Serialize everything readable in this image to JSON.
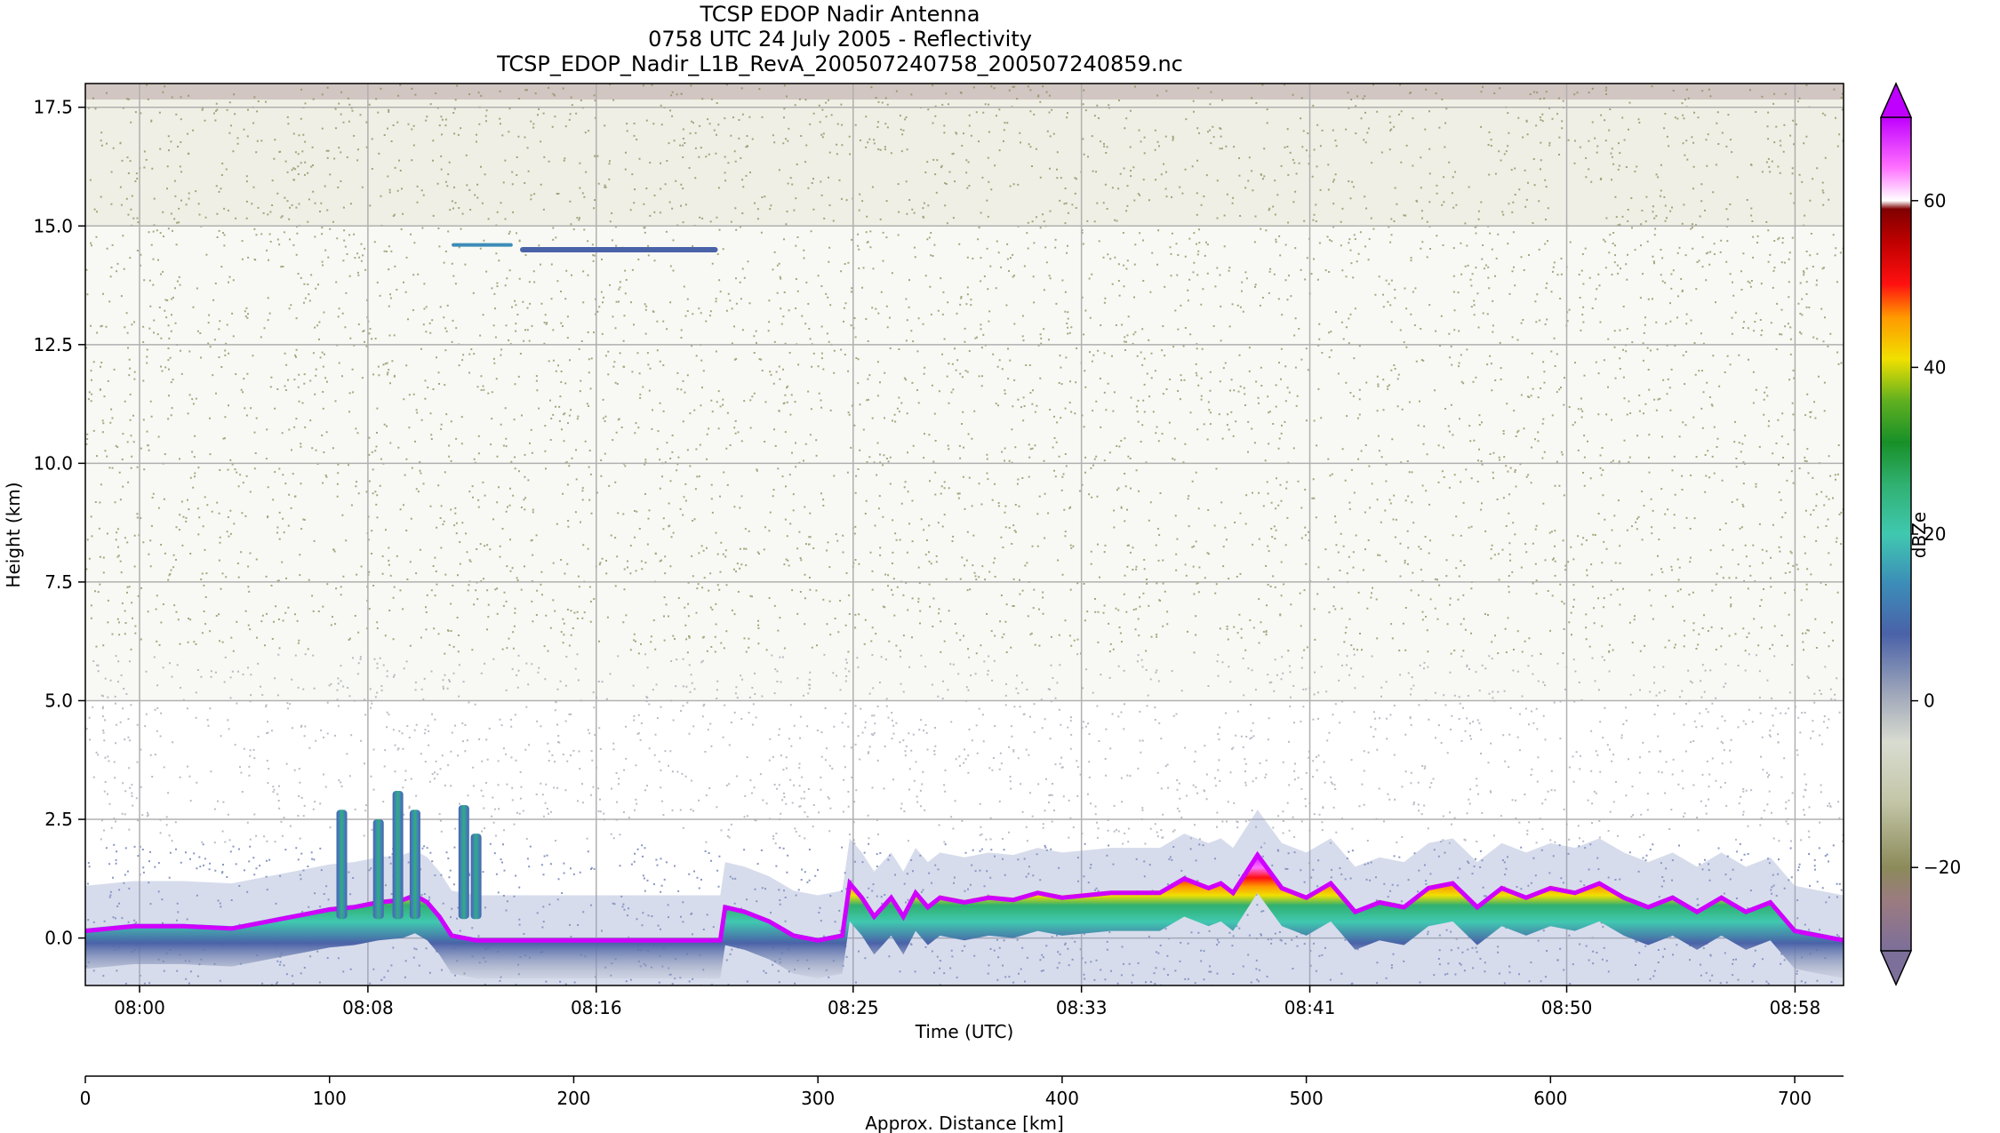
{
  "chart_data": {
    "type": "heatmap",
    "title_lines": [
      "TCSP EDOP Nadir Antenna",
      "0758 UTC 24 July 2005 - Reflectivity",
      "TCSP_EDOP_Nadir_L1B_RevA_200507240758_200507240859.nc"
    ],
    "xlabel": "Time (UTC)",
    "ylabel": "Height (km)",
    "x2label": "Approx. Distance [km]",
    "ylim": [
      -1.0,
      18.0
    ],
    "yticks": [
      0.0,
      2.5,
      5.0,
      7.5,
      10.0,
      12.5,
      15.0,
      17.5
    ],
    "ytick_labels": [
      "0.0",
      "2.5",
      "5.0",
      "7.5",
      "10.0",
      "12.5",
      "15.0",
      "17.5"
    ],
    "time_range_min": [
      478.1,
      539.7
    ],
    "xticks_min": [
      480,
      488,
      496,
      505,
      513,
      521,
      530,
      538
    ],
    "xtick_labels": [
      "08:00",
      "08:08",
      "08:16",
      "08:25",
      "08:33",
      "08:41",
      "08:50",
      "08:58"
    ],
    "distance_range_km": [
      0,
      720
    ],
    "distance_ticks": [
      0,
      100,
      200,
      300,
      400,
      500,
      600,
      700
    ],
    "distance_tick_labels": [
      "0",
      "100",
      "200",
      "300",
      "400",
      "500",
      "600",
      "700"
    ],
    "grid": true,
    "colorbar": {
      "label": "dBZe",
      "range": [
        -30,
        70
      ],
      "ticks": [
        -20,
        0,
        20,
        40,
        60
      ],
      "tick_labels": [
        "−20",
        "0",
        "20",
        "40",
        "60"
      ],
      "extend": "both",
      "colormap": [
        {
          "v": -30,
          "c": "#7c6f9a"
        },
        {
          "v": -24,
          "c": "#9b7b80"
        },
        {
          "v": -20,
          "c": "#8b8b5a"
        },
        {
          "v": -12,
          "c": "#c4c6a8"
        },
        {
          "v": -5,
          "c": "#d8dcd0"
        },
        {
          "v": 0,
          "c": "#a8aebc"
        },
        {
          "v": 8,
          "c": "#4a62a8"
        },
        {
          "v": 14,
          "c": "#3c8cb8"
        },
        {
          "v": 20,
          "c": "#40c8b0"
        },
        {
          "v": 26,
          "c": "#30b070"
        },
        {
          "v": 31,
          "c": "#189028"
        },
        {
          "v": 36,
          "c": "#60b020"
        },
        {
          "v": 41,
          "c": "#f0e000"
        },
        {
          "v": 46,
          "c": "#ff9900"
        },
        {
          "v": 50,
          "c": "#ff1010"
        },
        {
          "v": 55,
          "c": "#c00000"
        },
        {
          "v": 59,
          "c": "#800000"
        },
        {
          "v": 60,
          "c": "#ffffff"
        },
        {
          "v": 64,
          "c": "#ff70ff"
        },
        {
          "v": 70,
          "c": "#c000ff"
        }
      ]
    },
    "surface_profile": {
      "distance_km": [
        0,
        20,
        40,
        60,
        70,
        80,
        90,
        100,
        110,
        120,
        130,
        135,
        140,
        145,
        150,
        160,
        180,
        200,
        220,
        240,
        260,
        262,
        270,
        280,
        290,
        300,
        310,
        313,
        318,
        323,
        330,
        335,
        340,
        345,
        350,
        360,
        370,
        380,
        390,
        400,
        420,
        440,
        450,
        460,
        465,
        470,
        480,
        490,
        500,
        510,
        520,
        530,
        540,
        550,
        560,
        570,
        580,
        590,
        600,
        610,
        620,
        630,
        640,
        650,
        660,
        670,
        680,
        690,
        700,
        720
      ],
      "top_km": [
        0.2,
        0.3,
        0.3,
        0.25,
        0.35,
        0.45,
        0.55,
        0.65,
        0.7,
        0.8,
        0.85,
        0.95,
        0.8,
        0.5,
        0.1,
        0.0,
        0.0,
        0.0,
        0.0,
        0.0,
        0.0,
        0.7,
        0.6,
        0.4,
        0.1,
        0.0,
        0.1,
        1.2,
        0.9,
        0.5,
        0.9,
        0.5,
        1.0,
        0.7,
        0.9,
        0.8,
        0.9,
        0.85,
        1.0,
        0.9,
        1.0,
        1.0,
        1.3,
        1.1,
        1.2,
        1.0,
        1.8,
        1.1,
        0.9,
        1.2,
        0.6,
        0.8,
        0.7,
        1.1,
        1.2,
        0.7,
        1.1,
        0.9,
        1.1,
        1.0,
        1.2,
        0.9,
        0.7,
        0.9,
        0.6,
        0.9,
        0.6,
        0.8,
        0.2,
        0.0
      ]
    },
    "convective_cells": [
      {
        "distance_km": 105,
        "top_km": 2.7
      },
      {
        "distance_km": 120,
        "top_km": 2.5
      },
      {
        "distance_km": 128,
        "top_km": 3.1
      },
      {
        "distance_km": 135,
        "top_km": 2.7
      },
      {
        "distance_km": 155,
        "top_km": 2.8
      },
      {
        "distance_km": 160,
        "top_km": 2.2
      }
    ],
    "upper_layer_km": 14.5
  }
}
